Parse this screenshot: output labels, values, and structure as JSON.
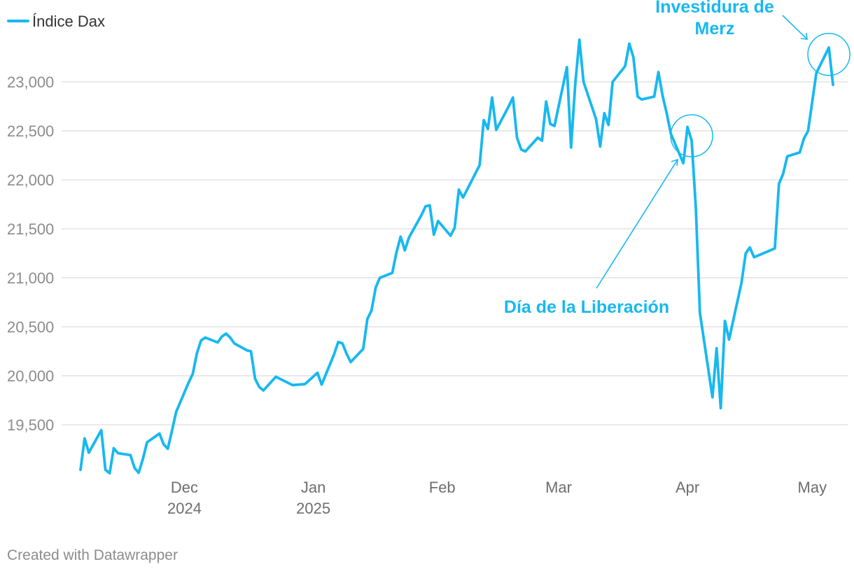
{
  "chart_data": {
    "type": "line",
    "legend": {
      "label": "Índice Dax",
      "placement": "top-left"
    },
    "series": [
      {
        "name": "Índice Dax",
        "color": "#18b8f0",
        "x": [
          "2024-11-06",
          "2024-11-07",
          "2024-11-08",
          "2024-11-11",
          "2024-11-12",
          "2024-11-13",
          "2024-11-14",
          "2024-11-15",
          "2024-11-18",
          "2024-11-19",
          "2024-11-20",
          "2024-11-21",
          "2024-11-22",
          "2024-11-25",
          "2024-11-26",
          "2024-11-27",
          "2024-11-28",
          "2024-11-29",
          "2024-12-02",
          "2024-12-03",
          "2024-12-04",
          "2024-12-05",
          "2024-12-06",
          "2024-12-09",
          "2024-12-10",
          "2024-12-11",
          "2024-12-12",
          "2024-12-13",
          "2024-12-16",
          "2024-12-17",
          "2024-12-18",
          "2024-12-19",
          "2024-12-20",
          "2024-12-23",
          "2024-12-27",
          "2024-12-30",
          "2025-01-02",
          "2025-01-03",
          "2025-01-06",
          "2025-01-07",
          "2025-01-08",
          "2025-01-09",
          "2025-01-10",
          "2025-01-13",
          "2025-01-14",
          "2025-01-15",
          "2025-01-16",
          "2025-01-17",
          "2025-01-20",
          "2025-01-21",
          "2025-01-22",
          "2025-01-23",
          "2025-01-24",
          "2025-01-27",
          "2025-01-28",
          "2025-01-29",
          "2025-01-30",
          "2025-01-31",
          "2025-02-03",
          "2025-02-04",
          "2025-02-05",
          "2025-02-06",
          "2025-02-07",
          "2025-02-10",
          "2025-02-11",
          "2025-02-12",
          "2025-02-13",
          "2025-02-14",
          "2025-02-17",
          "2025-02-18",
          "2025-02-19",
          "2025-02-20",
          "2025-02-21",
          "2025-02-24",
          "2025-02-25",
          "2025-02-26",
          "2025-02-27",
          "2025-02-28",
          "2025-03-03",
          "2025-03-04",
          "2025-03-05",
          "2025-03-06",
          "2025-03-07",
          "2025-03-10",
          "2025-03-11",
          "2025-03-12",
          "2025-03-13",
          "2025-03-14",
          "2025-03-17",
          "2025-03-18",
          "2025-03-19",
          "2025-03-20",
          "2025-03-21",
          "2025-03-24",
          "2025-03-25",
          "2025-03-26",
          "2025-03-27",
          "2025-03-28",
          "2025-03-31",
          "2025-04-01",
          "2025-04-02",
          "2025-04-03",
          "2025-04-04",
          "2025-04-07",
          "2025-04-08",
          "2025-04-09",
          "2025-04-10",
          "2025-04-11",
          "2025-04-14",
          "2025-04-15",
          "2025-04-16",
          "2025-04-17",
          "2025-04-22",
          "2025-04-23",
          "2025-04-24",
          "2025-04-25",
          "2025-04-28",
          "2025-04-29",
          "2025-04-30",
          "2025-05-02",
          "2025-05-05",
          "2025-05-06"
        ],
        "values": [
          19040,
          19360,
          19215,
          19445,
          19040,
          19005,
          19260,
          19210,
          19190,
          19060,
          19010,
          19150,
          19320,
          19410,
          19300,
          19255,
          19440,
          19630,
          19930,
          20020,
          20230,
          20360,
          20390,
          20340,
          20400,
          20430,
          20390,
          20330,
          20260,
          20250,
          19970,
          19885,
          19850,
          19990,
          19905,
          19915,
          20030,
          19910,
          20220,
          20345,
          20330,
          20225,
          20140,
          20275,
          20580,
          20665,
          20900,
          21000,
          21050,
          21260,
          21420,
          21280,
          21410,
          21640,
          21730,
          21740,
          21440,
          21580,
          21430,
          21510,
          21900,
          21820,
          21900,
          22150,
          22610,
          22520,
          22840,
          22510,
          22750,
          22840,
          22430,
          22310,
          22290,
          22430,
          22400,
          22800,
          22570,
          22550,
          23150,
          22330,
          22980,
          23430,
          23000,
          22620,
          22340,
          22680,
          22560,
          23000,
          23160,
          23390,
          23250,
          22850,
          22820,
          22850,
          23100,
          22860,
          22680,
          22470,
          22170,
          22540,
          22400,
          21720,
          20640,
          19780,
          20280,
          19670,
          20560,
          20370,
          20950,
          21250,
          21310,
          21210,
          21300,
          21960,
          22060,
          22240,
          22280,
          22420,
          22500,
          23090,
          23350,
          22970
        ]
      }
    ],
    "y_ticks": [
      "23,000",
      "22,500",
      "22,000",
      "21,500",
      "21,000",
      "20,500",
      "20,000",
      "19,500"
    ],
    "y_tick_values": [
      23000,
      22500,
      22000,
      21500,
      21000,
      20500,
      20000,
      19500
    ],
    "ylim": [
      19000,
      23450
    ],
    "x_ticks": [
      {
        "date": "2024-12-01",
        "label": "Dec",
        "sublabel": "2024"
      },
      {
        "date": "2025-01-01",
        "label": "Jan",
        "sublabel": "2025"
      },
      {
        "date": "2025-02-01",
        "label": "Feb",
        "sublabel": ""
      },
      {
        "date": "2025-03-01",
        "label": "Mar",
        "sublabel": ""
      },
      {
        "date": "2025-04-01",
        "label": "Apr",
        "sublabel": ""
      },
      {
        "date": "2025-05-01",
        "label": "May",
        "sublabel": ""
      }
    ],
    "grid": true,
    "annotations": [
      {
        "lines": [
          "Día de la Liberación"
        ],
        "target_date": "2025-04-02",
        "target_value": 22450,
        "color": "#18b8f0"
      },
      {
        "lines": [
          "Investidura de",
          "Merz"
        ],
        "target_date": "2025-05-05",
        "target_value": 23280,
        "color": "#18b8f0"
      }
    ]
  },
  "footer": "Created with Datawrapper"
}
